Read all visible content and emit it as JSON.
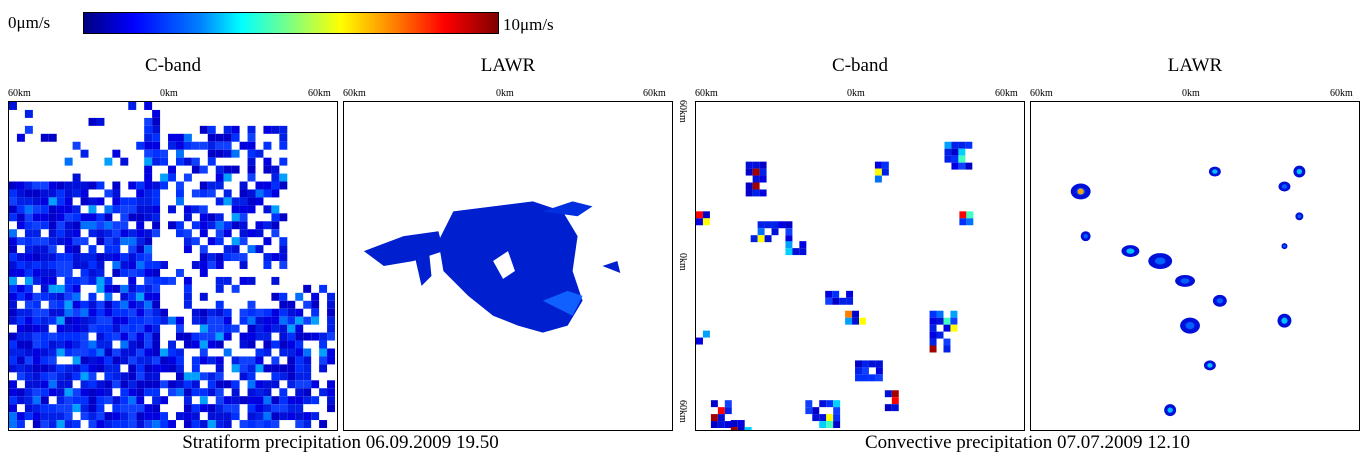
{
  "colorbar": {
    "min_label": "0μm/s",
    "max_label": "10μm/s",
    "colors": [
      "#000080",
      "#0000ff",
      "#0080ff",
      "#00ffff",
      "#80ff80",
      "#ffff00",
      "#ff8000",
      "#ff0000",
      "#800000"
    ]
  },
  "ticks": {
    "left": "60km",
    "center": "0km",
    "right": "60km"
  },
  "captions": {
    "stratiform": "Stratiform precipitation 06.09.2009 19.50",
    "convective": "Convective precipitation 07.07.2009 12.10"
  },
  "chart_data": [
    {
      "type": "heatmap",
      "title": "C-band",
      "event": "stratiform",
      "xlim": [
        -60,
        60
      ],
      "ylim": [
        -60,
        60
      ],
      "units": "μm/s"
    },
    {
      "type": "heatmap",
      "title": "LAWR",
      "event": "stratiform",
      "xlim": [
        -60,
        60
      ],
      "ylim": [
        -60,
        60
      ],
      "units": "μm/s"
    },
    {
      "type": "heatmap",
      "title": "C-band",
      "event": "convective",
      "xlim": [
        -60,
        60
      ],
      "ylim": [
        -60,
        60
      ],
      "units": "μm/s"
    },
    {
      "type": "heatmap",
      "title": "LAWR",
      "event": "convective",
      "xlim": [
        -60,
        60
      ],
      "ylim": [
        -60,
        60
      ],
      "units": "μm/s"
    }
  ]
}
